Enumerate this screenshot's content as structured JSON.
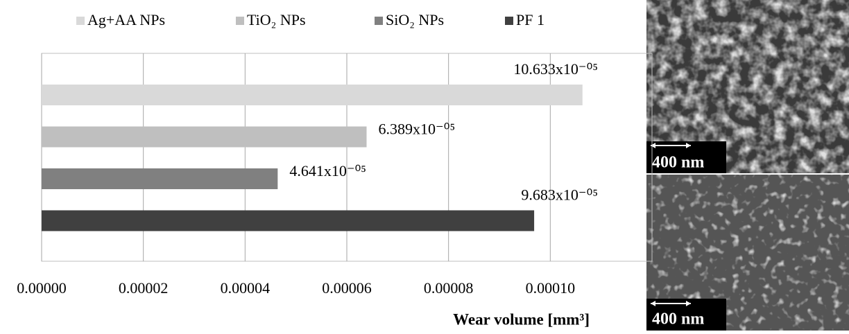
{
  "chart_data": {
    "type": "hbar",
    "series": [
      {
        "name": "Ag+AA NPs",
        "color": "#d9d9d9",
        "values": [
          0.00010633
        ],
        "value_labels": [
          "10.633x10⁻⁰⁵"
        ]
      },
      {
        "name": "TiO₂ NPs",
        "color": "#bfbfbf",
        "values": [
          6.389e-05
        ],
        "value_labels": [
          "6.389x10⁻⁰⁵"
        ]
      },
      {
        "name": "SiO₂ NPs",
        "color": "#808080",
        "values": [
          4.641e-05
        ],
        "value_labels": [
          "4.641x10⁻⁰⁵"
        ]
      },
      {
        "name": "PF 1",
        "color": "#404040",
        "values": [
          9.683e-05
        ],
        "value_labels": [
          "9.683x10⁻⁰⁵"
        ]
      }
    ],
    "xlabel": "Wear volume [mm³]",
    "xlim": [
      0,
      0.00012
    ],
    "xticks": [
      {
        "value": 0,
        "label": "0.00000"
      },
      {
        "value": 2e-05,
        "label": "0.00002"
      },
      {
        "value": 4e-05,
        "label": "0.00004"
      },
      {
        "value": 6e-05,
        "label": "0.00006"
      },
      {
        "value": 8e-05,
        "label": "0.00008"
      },
      {
        "value": 0.0001,
        "label": "0.00010"
      }
    ],
    "grid": true,
    "legend": "top"
  },
  "scale_bars": [
    "400 nm",
    "400 nm"
  ]
}
